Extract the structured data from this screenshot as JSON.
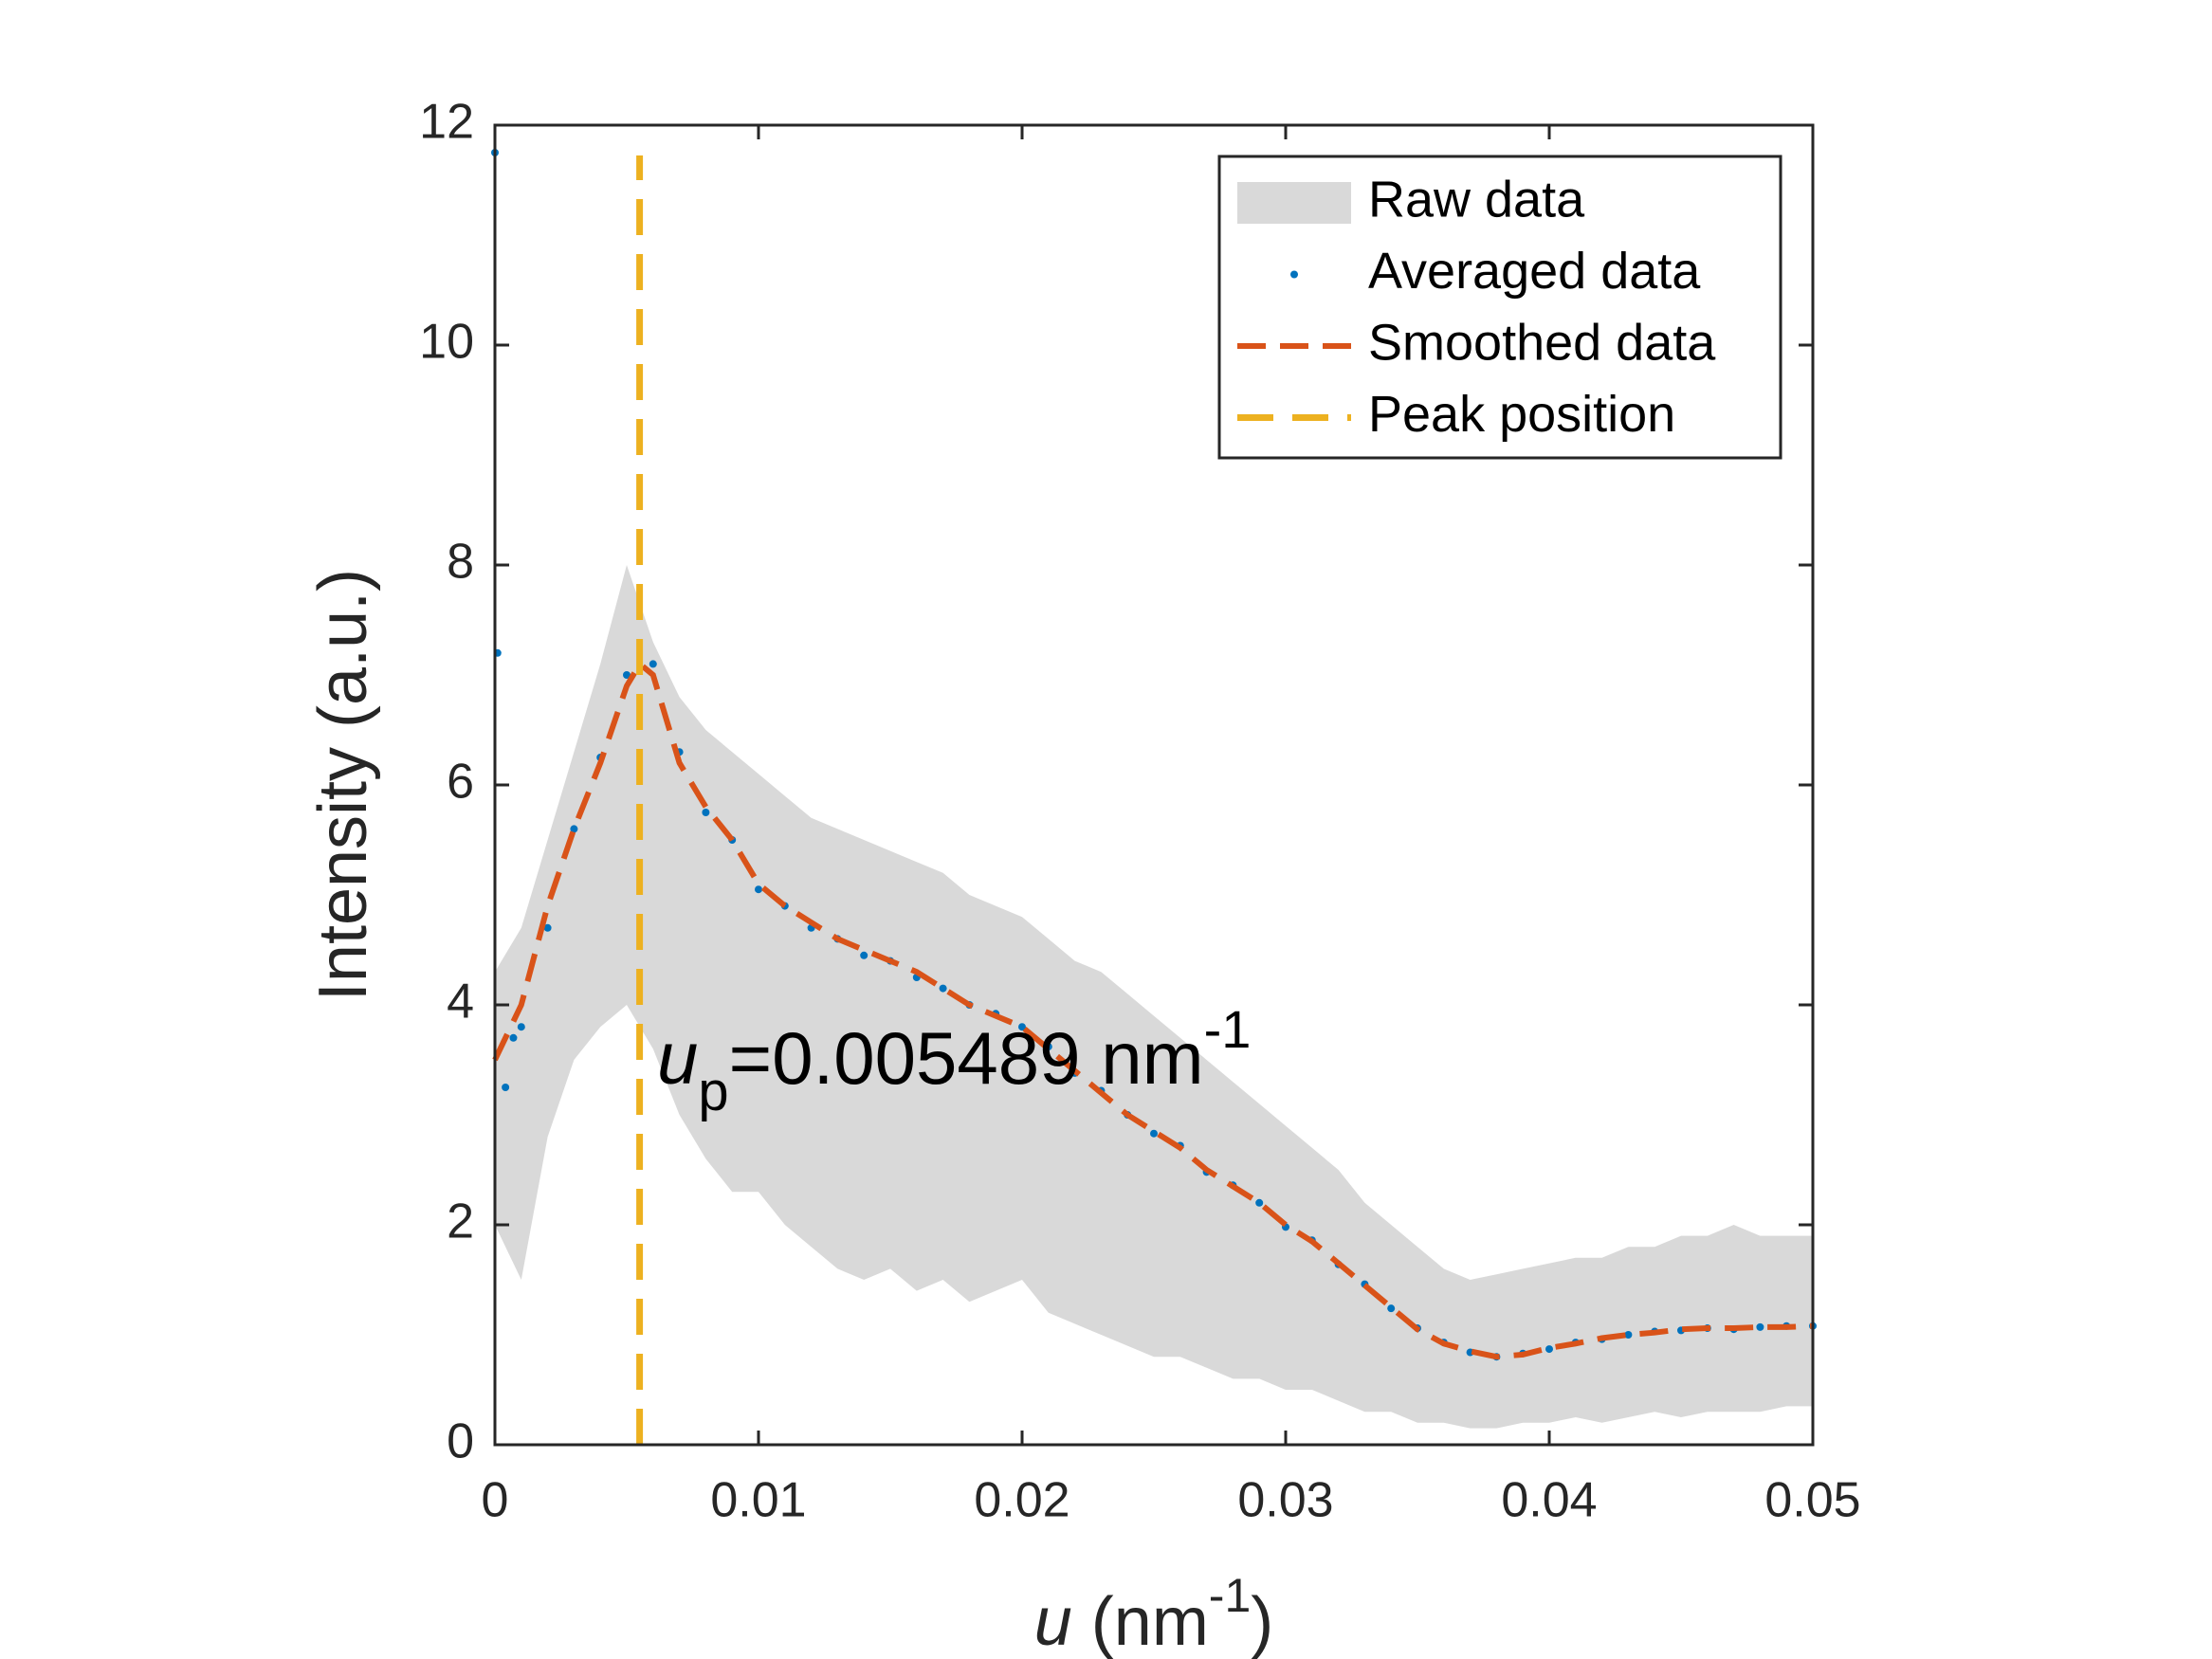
{
  "chart_data": {
    "type": "line",
    "xlabel": [
      "u",
      " (nm",
      "-1",
      ")"
    ],
    "ylabel": "Intensity (a.u.)",
    "annotation": [
      "u",
      "p",
      "=0.005489 nm",
      "-1"
    ],
    "xlim": [
      0,
      0.05
    ],
    "xticks": [
      0,
      0.01,
      0.02,
      0.03,
      0.04,
      0.05
    ],
    "ylim": [
      0,
      12
    ],
    "yticks": [
      0,
      2,
      4,
      6,
      8,
      10,
      12
    ],
    "legend": "top-right",
    "series": [
      {
        "name": "Raw data",
        "kind": "band",
        "color": "#d9d9d9",
        "x": [
          0,
          0.001,
          0.002,
          0.003,
          0.004,
          0.005,
          0.006,
          0.007,
          0.008,
          0.009,
          0.01,
          0.011,
          0.012,
          0.013,
          0.014,
          0.015,
          0.016,
          0.017,
          0.018,
          0.019,
          0.02,
          0.021,
          0.022,
          0.023,
          0.024,
          0.025,
          0.026,
          0.027,
          0.028,
          0.029,
          0.03,
          0.031,
          0.032,
          0.033,
          0.034,
          0.035,
          0.036,
          0.037,
          0.038,
          0.039,
          0.04,
          0.041,
          0.042,
          0.043,
          0.044,
          0.045,
          0.046,
          0.047,
          0.048,
          0.049,
          0.05
        ],
        "upper": [
          4.3,
          4.7,
          5.5,
          6.3,
          7.1,
          8.0,
          7.3,
          6.8,
          6.5,
          6.3,
          6.1,
          5.9,
          5.7,
          5.6,
          5.5,
          5.4,
          5.3,
          5.2,
          5.0,
          4.9,
          4.8,
          4.6,
          4.4,
          4.3,
          4.1,
          3.9,
          3.7,
          3.5,
          3.3,
          3.1,
          2.9,
          2.7,
          2.5,
          2.2,
          2.0,
          1.8,
          1.6,
          1.5,
          1.55,
          1.6,
          1.65,
          1.7,
          1.7,
          1.8,
          1.8,
          1.9,
          1.9,
          2.0,
          1.9,
          1.9,
          1.9
        ],
        "lower": [
          2.0,
          1.5,
          2.8,
          3.5,
          3.8,
          4.0,
          3.6,
          3.0,
          2.6,
          2.3,
          2.3,
          2.0,
          1.8,
          1.6,
          1.5,
          1.6,
          1.4,
          1.5,
          1.3,
          1.4,
          1.5,
          1.2,
          1.1,
          1.0,
          0.9,
          0.8,
          0.8,
          0.7,
          0.6,
          0.6,
          0.5,
          0.5,
          0.4,
          0.3,
          0.3,
          0.2,
          0.2,
          0.15,
          0.15,
          0.2,
          0.2,
          0.25,
          0.2,
          0.25,
          0.3,
          0.25,
          0.3,
          0.3,
          0.3,
          0.35,
          0.35
        ]
      },
      {
        "name": "Averaged data",
        "kind": "points",
        "color": "#0072bd",
        "x": [
          0,
          0.0001,
          0.0004,
          0.0007,
          0.001,
          0.002,
          0.003,
          0.004,
          0.005,
          0.006,
          0.007,
          0.008,
          0.009,
          0.01,
          0.011,
          0.012,
          0.013,
          0.014,
          0.015,
          0.016,
          0.017,
          0.018,
          0.019,
          0.02,
          0.021,
          0.022,
          0.023,
          0.024,
          0.025,
          0.026,
          0.027,
          0.028,
          0.029,
          0.03,
          0.031,
          0.032,
          0.033,
          0.034,
          0.035,
          0.036,
          0.037,
          0.038,
          0.039,
          0.04,
          0.041,
          0.042,
          0.043,
          0.044,
          0.045,
          0.046,
          0.047,
          0.048,
          0.049,
          0.05
        ],
        "values": [
          11.75,
          7.2,
          3.25,
          3.7,
          3.8,
          4.7,
          5.6,
          6.25,
          7.0,
          7.1,
          6.3,
          5.75,
          5.5,
          5.05,
          4.9,
          4.7,
          4.6,
          4.45,
          4.4,
          4.25,
          4.15,
          4.0,
          3.92,
          3.8,
          3.62,
          3.38,
          3.22,
          3.0,
          2.83,
          2.72,
          2.48,
          2.36,
          2.2,
          1.98,
          1.86,
          1.64,
          1.46,
          1.24,
          1.06,
          0.93,
          0.84,
          0.8,
          0.83,
          0.87,
          0.93,
          0.96,
          1.0,
          1.03,
          1.04,
          1.06,
          1.05,
          1.07,
          1.08,
          1.08
        ]
      },
      {
        "name": "Smoothed data",
        "kind": "line",
        "color": "#d95319",
        "x": [
          0,
          0.001,
          0.002,
          0.003,
          0.004,
          0.005,
          0.0055,
          0.006,
          0.007,
          0.008,
          0.009,
          0.01,
          0.011,
          0.012,
          0.013,
          0.014,
          0.015,
          0.016,
          0.017,
          0.018,
          0.019,
          0.02,
          0.021,
          0.022,
          0.023,
          0.024,
          0.025,
          0.026,
          0.027,
          0.028,
          0.029,
          0.03,
          0.031,
          0.032,
          0.033,
          0.034,
          0.035,
          0.036,
          0.037,
          0.038,
          0.039,
          0.04,
          0.041,
          0.042,
          0.043,
          0.044,
          0.045,
          0.046,
          0.047,
          0.048,
          0.049,
          0.05
        ],
        "values": [
          3.5,
          4.0,
          4.9,
          5.6,
          6.2,
          6.9,
          7.1,
          7.0,
          6.2,
          5.8,
          5.5,
          5.1,
          4.9,
          4.75,
          4.6,
          4.5,
          4.4,
          4.3,
          4.15,
          4.0,
          3.9,
          3.8,
          3.6,
          3.4,
          3.2,
          3.0,
          2.85,
          2.7,
          2.5,
          2.35,
          2.2,
          2.0,
          1.85,
          1.65,
          1.45,
          1.25,
          1.05,
          0.92,
          0.85,
          0.8,
          0.82,
          0.88,
          0.92,
          0.97,
          1.0,
          1.02,
          1.05,
          1.06,
          1.06,
          1.07,
          1.07,
          1.08
        ]
      },
      {
        "name": "Peak position",
        "kind": "vline",
        "color": "#edb120",
        "x": 0.005489
      }
    ]
  }
}
